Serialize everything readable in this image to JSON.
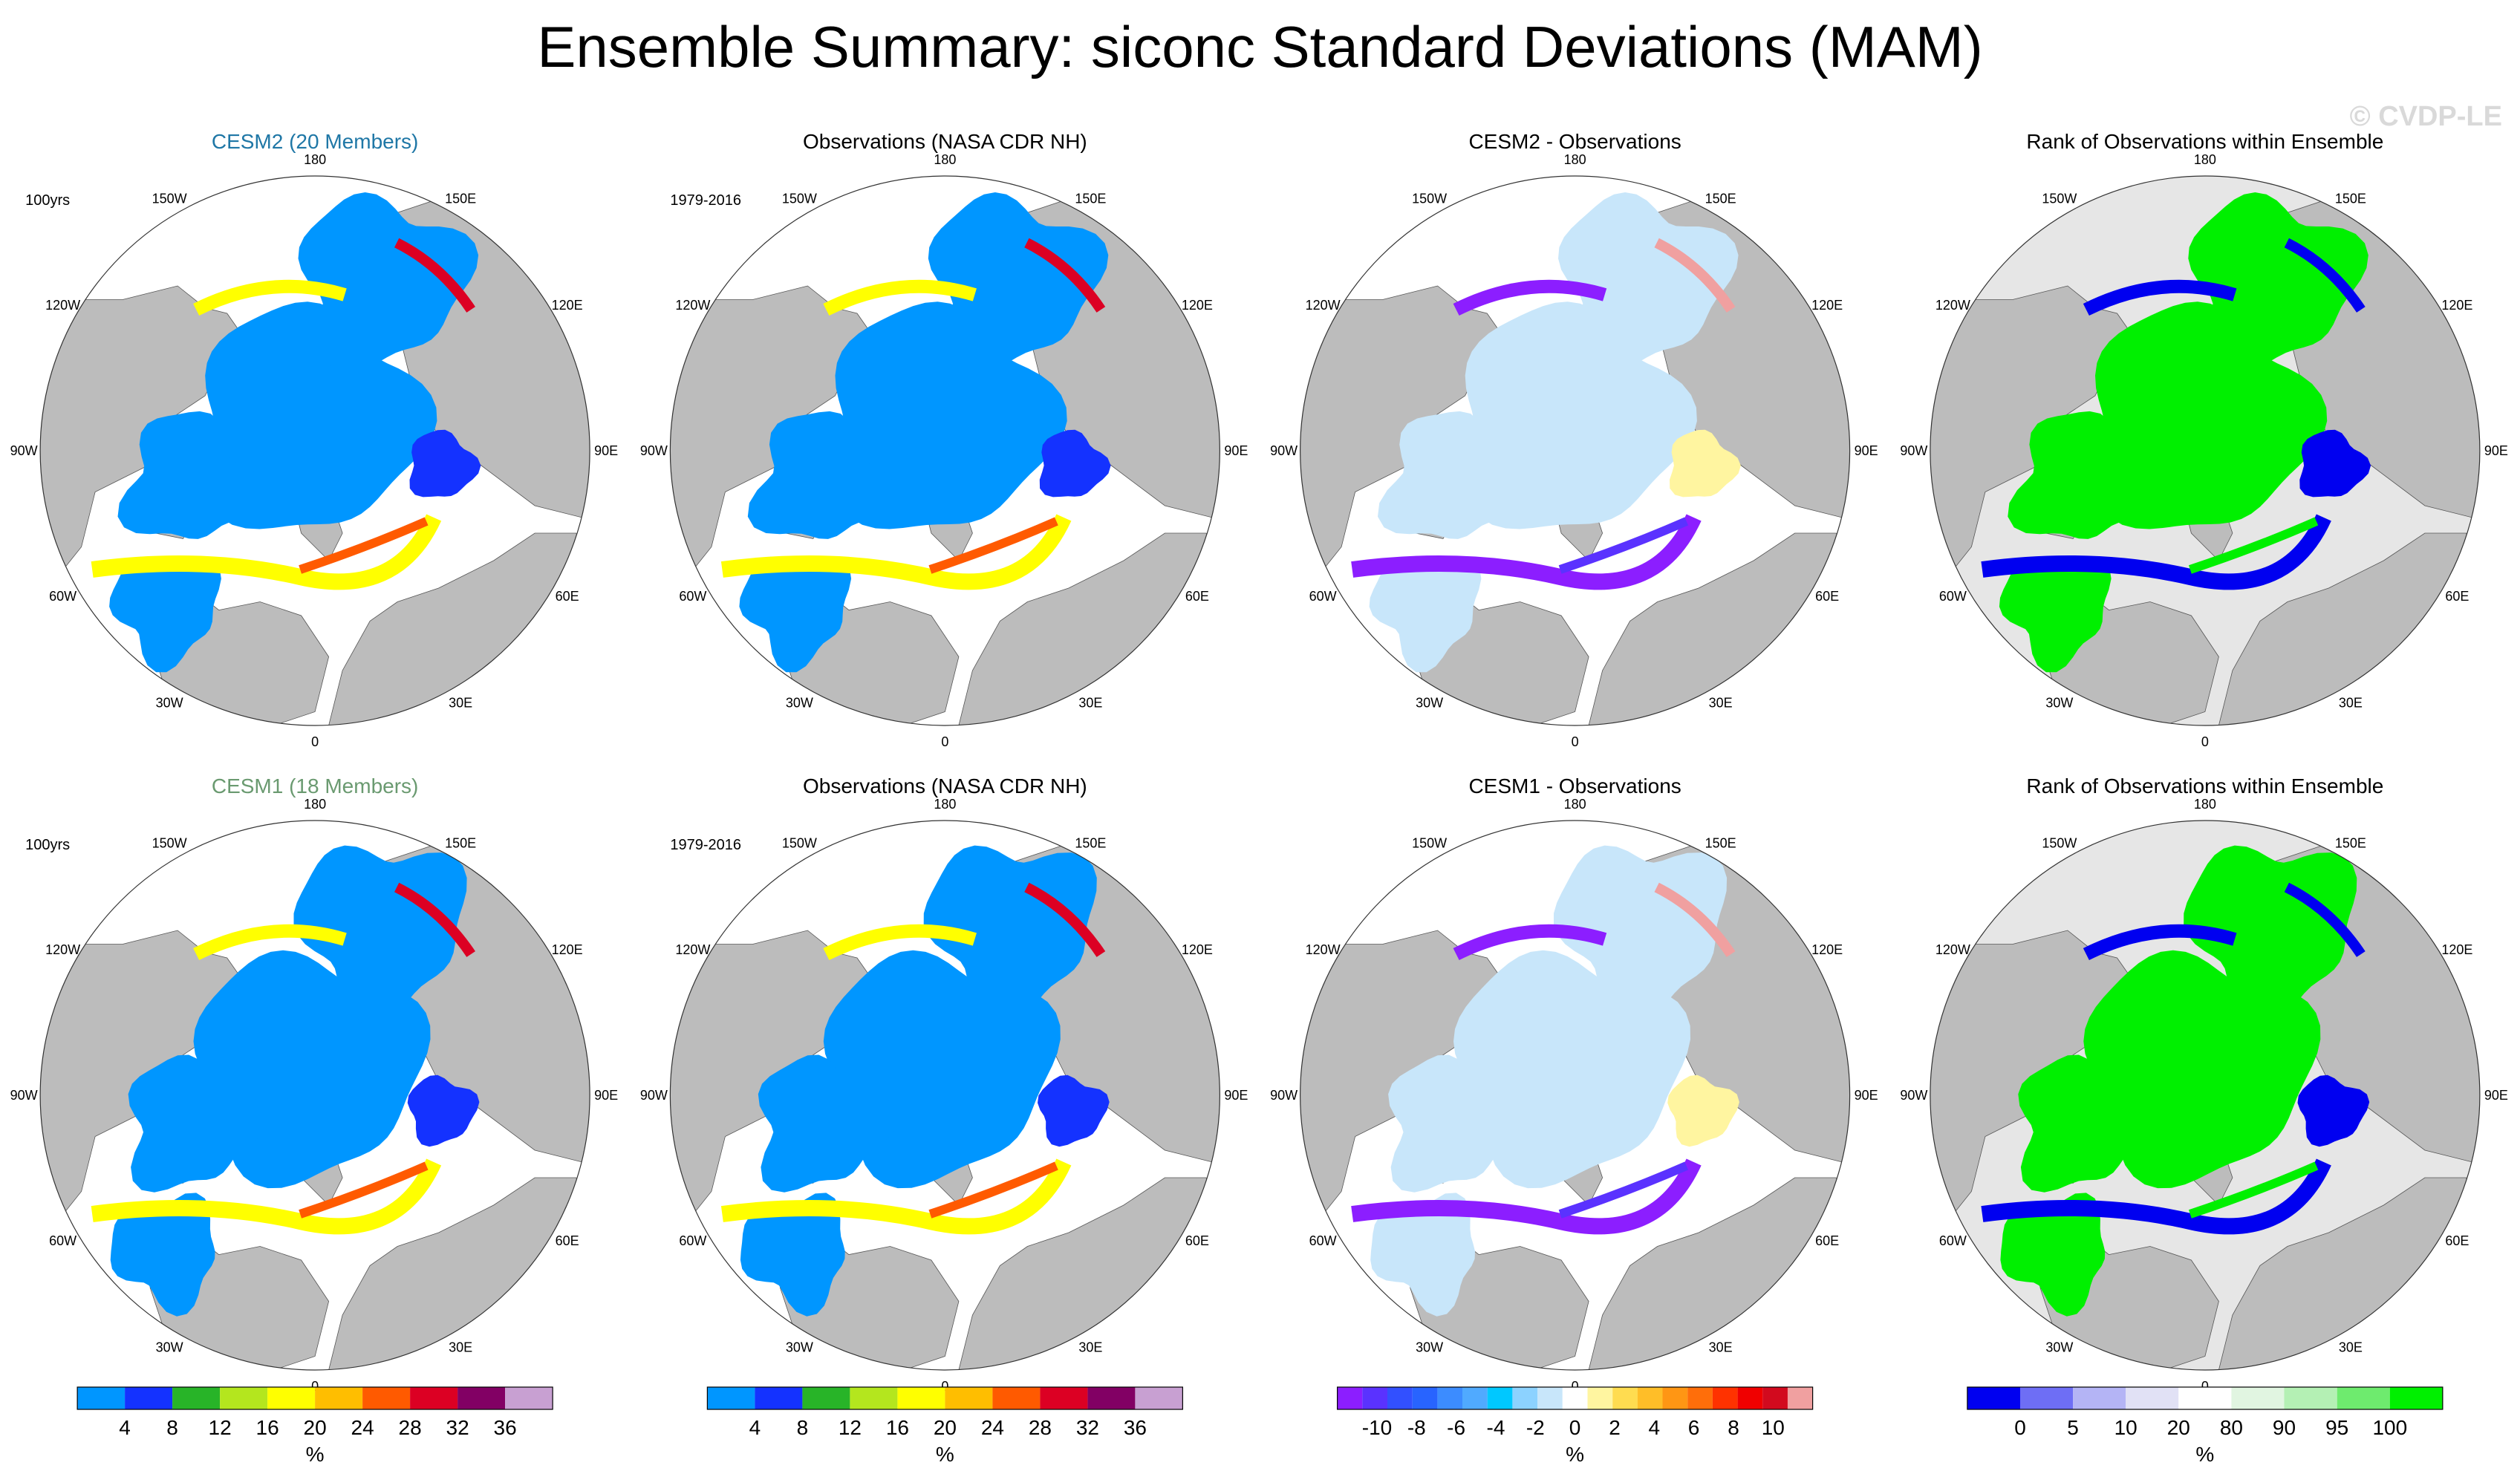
{
  "title": "Ensemble Summary: siconc Standard Deviations (MAM)",
  "watermark": "© CVDP-LE",
  "colors": {
    "land": "#bcbcbc",
    "ocean": "#ffffff",
    "rank_background": "#e6e6e6",
    "title_cesm2": "#1f77a6",
    "title_cesm1": "#6a9a70"
  },
  "rows": [
    {
      "panels": [
        {
          "title": "CESM2 (20 Members)",
          "period": "100yrs",
          "kind": "std_model",
          "variant": 0
        },
        {
          "title": "Observations (NASA CDR NH)",
          "period": "1979-2016",
          "kind": "std_obs",
          "variant": 0
        },
        {
          "title": "CESM2 - Observations",
          "period": "",
          "kind": "diff",
          "variant": 0
        },
        {
          "title": "Rank of Observations within Ensemble",
          "period": "",
          "kind": "rank",
          "variant": 0
        }
      ]
    },
    {
      "panels": [
        {
          "title": "CESM1 (18 Members)",
          "period": "100yrs",
          "kind": "std_model",
          "variant": 1
        },
        {
          "title": "Observations (NASA CDR NH)",
          "period": "1979-2016",
          "kind": "std_obs",
          "variant": 1
        },
        {
          "title": "CESM1 - Observations",
          "period": "",
          "kind": "diff",
          "variant": 1
        },
        {
          "title": "Rank of Observations within Ensemble",
          "period": "",
          "kind": "rank",
          "variant": 1
        }
      ]
    }
  ],
  "longitude_labels": [
    "180",
    "150E",
    "120E",
    "90E",
    "60E",
    "30E",
    "0",
    "30W",
    "60W",
    "90W",
    "120W",
    "150W"
  ],
  "chart_data": [
    {
      "type": "heatmap",
      "projection": "north-polar-stereographic",
      "variable": "siconc standard deviation",
      "season": "MAM",
      "colorbars": [
        {
          "id": "std",
          "applies_to": "columns 1-2",
          "unit": "%",
          "colors": [
            "#0096ff",
            "#1432ff",
            "#28b428",
            "#b4e61e",
            "#ffff00",
            "#ffbe00",
            "#ff5a00",
            "#dc0023",
            "#820064",
            "#c8a0d2"
          ],
          "labels": [
            "4",
            "8",
            "12",
            "16",
            "20",
            "24",
            "28",
            "32",
            "36"
          ]
        },
        {
          "id": "diff",
          "applies_to": "column 3",
          "unit": "%",
          "colors": [
            "#8c1eff",
            "#5a32ff",
            "#3250ff",
            "#2864ff",
            "#3c8cff",
            "#50aaff",
            "#00c8ff",
            "#8cd2ff",
            "#c8e6fa",
            "#ffffff",
            "#fff5a0",
            "#ffdc50",
            "#ffbe28",
            "#ff9614",
            "#ff6e0a",
            "#ff3200",
            "#f00000",
            "#d20a1e",
            "#f0a0a0"
          ],
          "labels": [
            "-10",
            "-8",
            "-6",
            "-4",
            "-2",
            "0",
            "2",
            "4",
            "6",
            "8",
            "10"
          ]
        },
        {
          "id": "rank",
          "applies_to": "column 4",
          "unit": "%",
          "colors": [
            "#0000f0",
            "#6e6ef5",
            "#b4b4f5",
            "#e1e1f5",
            "#ffffff",
            "#e1f5e1",
            "#b4f0b4",
            "#6eeb6e",
            "#00f000"
          ],
          "labels": [
            "0",
            "5",
            "10",
            "20",
            "80",
            "90",
            "95",
            "100"
          ]
        }
      ]
    }
  ]
}
